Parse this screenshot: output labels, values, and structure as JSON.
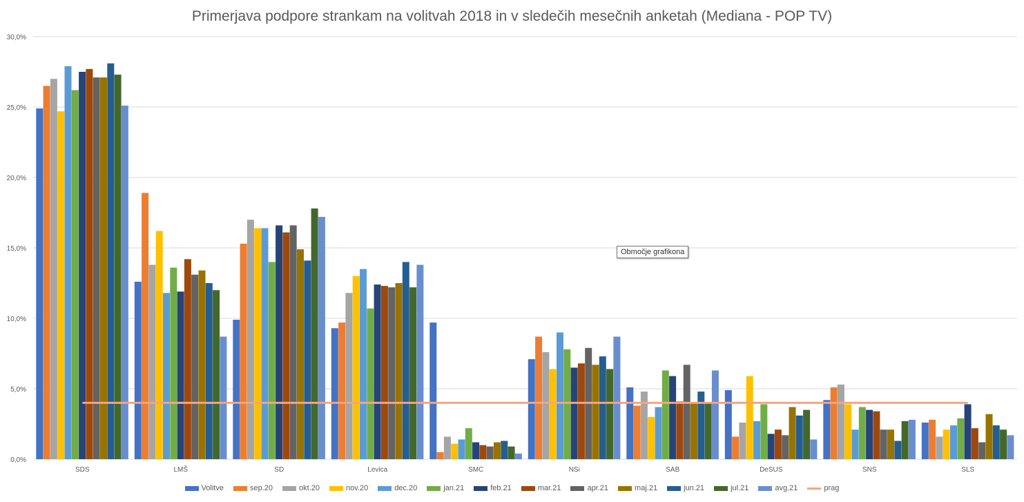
{
  "chart_data": {
    "type": "bar",
    "title": "Primerjava podpore strankam na volitvah 2018 in v sledečih mesečnih anketah (Mediana - POP TV)",
    "xlabel": "",
    "ylabel": "",
    "ylim": [
      0,
      30
    ],
    "yticks": [
      "0,0%",
      "5,0%",
      "10,0%",
      "15,0%",
      "20,0%",
      "25,0%",
      "30,0%"
    ],
    "grid": true,
    "legend_position": "bottom",
    "categories": [
      "SDS",
      "LMŠ",
      "SD",
      "Levica",
      "SMC",
      "NSi",
      "SAB",
      "DeSUS",
      "SNS",
      "SLS"
    ],
    "series": [
      {
        "name": "Volitve",
        "color": "#4472C4",
        "values": [
          24.9,
          12.6,
          9.9,
          9.3,
          9.7,
          7.1,
          5.1,
          4.9,
          4.2,
          2.6
        ]
      },
      {
        "name": "sep.20",
        "color": "#ED7D31",
        "values": [
          26.5,
          18.9,
          15.3,
          9.7,
          0.5,
          8.7,
          3.8,
          1.6,
          5.1,
          2.8
        ]
      },
      {
        "name": "okt.20",
        "color": "#A5A5A5",
        "values": [
          27.0,
          13.8,
          17.0,
          11.8,
          1.6,
          7.6,
          4.8,
          2.6,
          5.3,
          1.6
        ]
      },
      {
        "name": "nov.20",
        "color": "#FFC000",
        "values": [
          24.7,
          16.2,
          16.4,
          13.0,
          1.1,
          6.4,
          3.0,
          5.9,
          3.9,
          2.1
        ]
      },
      {
        "name": "dec.20",
        "color": "#5B9BD5",
        "values": [
          27.9,
          11.8,
          16.4,
          13.5,
          1.4,
          9.0,
          3.7,
          2.7,
          2.1,
          2.4
        ]
      },
      {
        "name": "jan.21",
        "color": "#70AD47",
        "values": [
          26.2,
          13.6,
          14.0,
          10.7,
          2.2,
          7.8,
          6.3,
          3.9,
          3.7,
          2.9
        ]
      },
      {
        "name": "feb.21",
        "color": "#264478",
        "values": [
          27.5,
          11.9,
          16.6,
          12.4,
          1.2,
          6.5,
          5.9,
          1.8,
          3.5,
          3.9
        ]
      },
      {
        "name": "mar.21",
        "color": "#9E480E",
        "values": [
          27.7,
          14.2,
          16.1,
          12.3,
          1.0,
          6.8,
          4.1,
          2.1,
          3.4,
          2.2
        ]
      },
      {
        "name": "apr.21",
        "color": "#636363",
        "values": [
          27.1,
          13.1,
          16.6,
          12.2,
          0.9,
          7.9,
          6.7,
          1.7,
          2.1,
          1.2
        ]
      },
      {
        "name": "maj.21",
        "color": "#997300",
        "values": [
          27.1,
          13.4,
          14.9,
          12.5,
          1.2,
          6.7,
          4.0,
          3.7,
          2.1,
          3.2
        ]
      },
      {
        "name": "jun.21",
        "color": "#255E91",
        "values": [
          28.1,
          12.5,
          14.1,
          14.0,
          1.3,
          7.3,
          4.8,
          3.1,
          1.3,
          2.4
        ]
      },
      {
        "name": "jul.21",
        "color": "#43682B",
        "values": [
          27.3,
          12.0,
          17.8,
          12.2,
          0.9,
          6.4,
          4.0,
          3.5,
          2.7,
          2.1
        ]
      },
      {
        "name": "avg.21",
        "color": "#698ED0",
        "values": [
          25.1,
          8.7,
          17.2,
          13.8,
          0.4,
          8.7,
          6.3,
          1.4,
          2.8,
          1.7
        ]
      }
    ],
    "lines": [
      {
        "name": "prag",
        "color": "#F4A582",
        "value": 4.0
      }
    ]
  },
  "tooltip": "Območje grafikona"
}
